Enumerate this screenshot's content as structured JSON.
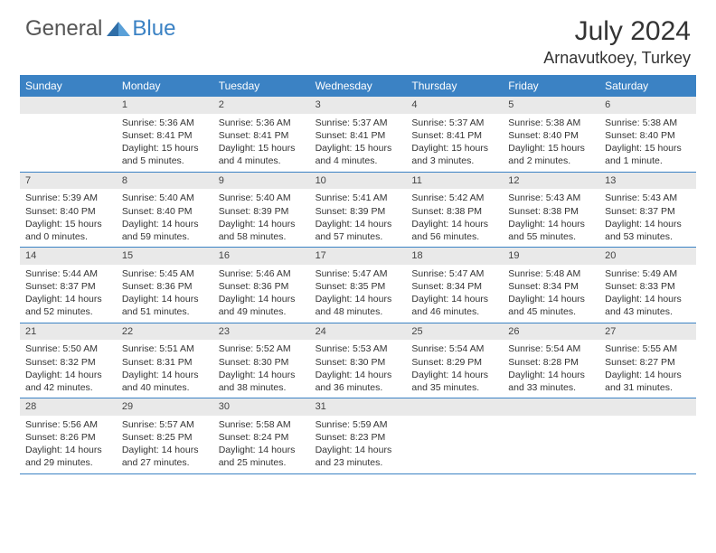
{
  "brand": {
    "part1": "General",
    "part2": "Blue",
    "accent": "#3b82c4",
    "text_gray": "#555555"
  },
  "title": "July 2024",
  "location": "Arnavutkoey, Turkey",
  "colors": {
    "header_bg": "#3b82c4",
    "header_fg": "#ffffff",
    "daynum_bg": "#e9e9e9",
    "border": "#3b82c4",
    "text": "#333333",
    "bg": "#ffffff"
  },
  "fonts": {
    "title_size": 30,
    "location_size": 18,
    "dayhead_size": 12,
    "cell_size": 10.5,
    "logo_size": 24
  },
  "day_names": [
    "Sunday",
    "Monday",
    "Tuesday",
    "Wednesday",
    "Thursday",
    "Friday",
    "Saturday"
  ],
  "weeks": [
    [
      {
        "n": "",
        "sr": "",
        "ss": "",
        "dl": ""
      },
      {
        "n": "1",
        "sr": "Sunrise: 5:36 AM",
        "ss": "Sunset: 8:41 PM",
        "dl": "Daylight: 15 hours and 5 minutes."
      },
      {
        "n": "2",
        "sr": "Sunrise: 5:36 AM",
        "ss": "Sunset: 8:41 PM",
        "dl": "Daylight: 15 hours and 4 minutes."
      },
      {
        "n": "3",
        "sr": "Sunrise: 5:37 AM",
        "ss": "Sunset: 8:41 PM",
        "dl": "Daylight: 15 hours and 4 minutes."
      },
      {
        "n": "4",
        "sr": "Sunrise: 5:37 AM",
        "ss": "Sunset: 8:41 PM",
        "dl": "Daylight: 15 hours and 3 minutes."
      },
      {
        "n": "5",
        "sr": "Sunrise: 5:38 AM",
        "ss": "Sunset: 8:40 PM",
        "dl": "Daylight: 15 hours and 2 minutes."
      },
      {
        "n": "6",
        "sr": "Sunrise: 5:38 AM",
        "ss": "Sunset: 8:40 PM",
        "dl": "Daylight: 15 hours and 1 minute."
      }
    ],
    [
      {
        "n": "7",
        "sr": "Sunrise: 5:39 AM",
        "ss": "Sunset: 8:40 PM",
        "dl": "Daylight: 15 hours and 0 minutes."
      },
      {
        "n": "8",
        "sr": "Sunrise: 5:40 AM",
        "ss": "Sunset: 8:40 PM",
        "dl": "Daylight: 14 hours and 59 minutes."
      },
      {
        "n": "9",
        "sr": "Sunrise: 5:40 AM",
        "ss": "Sunset: 8:39 PM",
        "dl": "Daylight: 14 hours and 58 minutes."
      },
      {
        "n": "10",
        "sr": "Sunrise: 5:41 AM",
        "ss": "Sunset: 8:39 PM",
        "dl": "Daylight: 14 hours and 57 minutes."
      },
      {
        "n": "11",
        "sr": "Sunrise: 5:42 AM",
        "ss": "Sunset: 8:38 PM",
        "dl": "Daylight: 14 hours and 56 minutes."
      },
      {
        "n": "12",
        "sr": "Sunrise: 5:43 AM",
        "ss": "Sunset: 8:38 PM",
        "dl": "Daylight: 14 hours and 55 minutes."
      },
      {
        "n": "13",
        "sr": "Sunrise: 5:43 AM",
        "ss": "Sunset: 8:37 PM",
        "dl": "Daylight: 14 hours and 53 minutes."
      }
    ],
    [
      {
        "n": "14",
        "sr": "Sunrise: 5:44 AM",
        "ss": "Sunset: 8:37 PM",
        "dl": "Daylight: 14 hours and 52 minutes."
      },
      {
        "n": "15",
        "sr": "Sunrise: 5:45 AM",
        "ss": "Sunset: 8:36 PM",
        "dl": "Daylight: 14 hours and 51 minutes."
      },
      {
        "n": "16",
        "sr": "Sunrise: 5:46 AM",
        "ss": "Sunset: 8:36 PM",
        "dl": "Daylight: 14 hours and 49 minutes."
      },
      {
        "n": "17",
        "sr": "Sunrise: 5:47 AM",
        "ss": "Sunset: 8:35 PM",
        "dl": "Daylight: 14 hours and 48 minutes."
      },
      {
        "n": "18",
        "sr": "Sunrise: 5:47 AM",
        "ss": "Sunset: 8:34 PM",
        "dl": "Daylight: 14 hours and 46 minutes."
      },
      {
        "n": "19",
        "sr": "Sunrise: 5:48 AM",
        "ss": "Sunset: 8:34 PM",
        "dl": "Daylight: 14 hours and 45 minutes."
      },
      {
        "n": "20",
        "sr": "Sunrise: 5:49 AM",
        "ss": "Sunset: 8:33 PM",
        "dl": "Daylight: 14 hours and 43 minutes."
      }
    ],
    [
      {
        "n": "21",
        "sr": "Sunrise: 5:50 AM",
        "ss": "Sunset: 8:32 PM",
        "dl": "Daylight: 14 hours and 42 minutes."
      },
      {
        "n": "22",
        "sr": "Sunrise: 5:51 AM",
        "ss": "Sunset: 8:31 PM",
        "dl": "Daylight: 14 hours and 40 minutes."
      },
      {
        "n": "23",
        "sr": "Sunrise: 5:52 AM",
        "ss": "Sunset: 8:30 PM",
        "dl": "Daylight: 14 hours and 38 minutes."
      },
      {
        "n": "24",
        "sr": "Sunrise: 5:53 AM",
        "ss": "Sunset: 8:30 PM",
        "dl": "Daylight: 14 hours and 36 minutes."
      },
      {
        "n": "25",
        "sr": "Sunrise: 5:54 AM",
        "ss": "Sunset: 8:29 PM",
        "dl": "Daylight: 14 hours and 35 minutes."
      },
      {
        "n": "26",
        "sr": "Sunrise: 5:54 AM",
        "ss": "Sunset: 8:28 PM",
        "dl": "Daylight: 14 hours and 33 minutes."
      },
      {
        "n": "27",
        "sr": "Sunrise: 5:55 AM",
        "ss": "Sunset: 8:27 PM",
        "dl": "Daylight: 14 hours and 31 minutes."
      }
    ],
    [
      {
        "n": "28",
        "sr": "Sunrise: 5:56 AM",
        "ss": "Sunset: 8:26 PM",
        "dl": "Daylight: 14 hours and 29 minutes."
      },
      {
        "n": "29",
        "sr": "Sunrise: 5:57 AM",
        "ss": "Sunset: 8:25 PM",
        "dl": "Daylight: 14 hours and 27 minutes."
      },
      {
        "n": "30",
        "sr": "Sunrise: 5:58 AM",
        "ss": "Sunset: 8:24 PM",
        "dl": "Daylight: 14 hours and 25 minutes."
      },
      {
        "n": "31",
        "sr": "Sunrise: 5:59 AM",
        "ss": "Sunset: 8:23 PM",
        "dl": "Daylight: 14 hours and 23 minutes."
      },
      {
        "n": "",
        "sr": "",
        "ss": "",
        "dl": ""
      },
      {
        "n": "",
        "sr": "",
        "ss": "",
        "dl": ""
      },
      {
        "n": "",
        "sr": "",
        "ss": "",
        "dl": ""
      }
    ]
  ]
}
